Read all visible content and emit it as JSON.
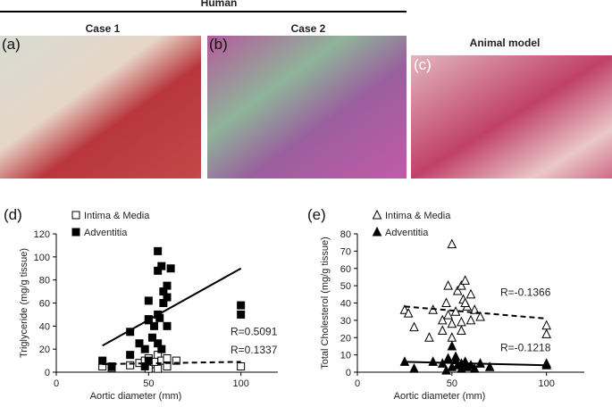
{
  "header": {
    "group": "Human",
    "case1": "Case 1",
    "case2": "Case 2",
    "animal": "Animal model"
  },
  "images": [
    {
      "label": "(a)"
    },
    {
      "label": "(b)"
    },
    {
      "label": "(c)"
    }
  ],
  "chart_data": [
    {
      "type": "scatter",
      "label": "(d)",
      "xlabel": "Aortic diameter (mm)",
      "ylabel": "Triglyceride (mg/g tissue)",
      "xlim": [
        0,
        120
      ],
      "xticks": [
        0,
        50,
        100
      ],
      "ylim": [
        0,
        120
      ],
      "yticks": [
        0,
        20,
        40,
        60,
        80,
        100,
        120
      ],
      "series": [
        {
          "name": "Intima & Media",
          "marker": "square-open",
          "color": "#000",
          "x": [
            25,
            30,
            40,
            45,
            48,
            50,
            52,
            55,
            55,
            57,
            60,
            60,
            65,
            100,
            50,
            53
          ],
          "values": [
            5,
            4,
            6,
            8,
            10,
            12,
            7,
            15,
            3,
            10,
            5,
            12,
            10,
            5,
            3,
            9
          ]
        },
        {
          "name": "Adventitia",
          "marker": "square",
          "color": "#000",
          "x": [
            25,
            30,
            40,
            40,
            45,
            48,
            50,
            50,
            50,
            52,
            53,
            55,
            55,
            57,
            55,
            56,
            58,
            58,
            60,
            60,
            57,
            55,
            62,
            50,
            100,
            100,
            48,
            60
          ],
          "values": [
            10,
            5,
            35,
            15,
            25,
            5,
            45,
            62,
            46,
            30,
            40,
            105,
            88,
            92,
            50,
            47,
            70,
            60,
            75,
            65,
            20,
            25,
            90,
            10,
            58,
            50,
            20,
            40
          ]
        }
      ],
      "trendlines": [
        {
          "label": "R=0.5091",
          "dashed": false,
          "x": [
            25,
            100
          ],
          "values": [
            23,
            90
          ]
        },
        {
          "label": "R=0.1337",
          "dashed": true,
          "x": [
            25,
            100
          ],
          "values": [
            7,
            9
          ]
        }
      ]
    },
    {
      "type": "scatter",
      "label": "(e)",
      "xlabel": "Aortic diameter (mm)",
      "ylabel": "Total Cholesterol (mg/g tissue)",
      "xlim": [
        0,
        120
      ],
      "xticks": [
        0,
        50,
        100
      ],
      "ylim": [
        0,
        80
      ],
      "yticks": [
        0,
        10,
        20,
        30,
        40,
        50,
        60,
        70,
        80
      ],
      "series": [
        {
          "name": "Intima & Media",
          "marker": "triangle-open",
          "color": "#000",
          "x": [
            25,
            27,
            30,
            38,
            40,
            45,
            47,
            48,
            50,
            50,
            52,
            53,
            55,
            55,
            56,
            57,
            58,
            60,
            60,
            62,
            65,
            50,
            48,
            45,
            55,
            57,
            100,
            100
          ],
          "values": [
            36,
            34,
            26,
            20,
            36,
            30,
            40,
            33,
            74,
            28,
            35,
            47,
            50,
            24,
            42,
            53,
            38,
            45,
            30,
            36,
            32,
            20,
            50,
            24,
            29,
            40,
            27,
            22
          ]
        },
        {
          "name": "Adventitia",
          "marker": "triangle",
          "color": "#000",
          "x": [
            25,
            30,
            40,
            45,
            48,
            50,
            50,
            52,
            53,
            55,
            55,
            57,
            58,
            60,
            62,
            65,
            70,
            100,
            100,
            47,
            52
          ],
          "values": [
            6,
            2,
            6,
            5,
            8,
            15,
            3,
            7,
            4,
            5,
            2,
            6,
            3,
            4,
            2,
            5,
            3,
            5,
            4,
            1,
            9
          ]
        }
      ],
      "trendlines": [
        {
          "label": "R=-0.1366",
          "dashed": true,
          "x": [
            25,
            100
          ],
          "values": [
            38,
            31
          ]
        },
        {
          "label": "R=-0.1218",
          "dashed": false,
          "x": [
            25,
            100
          ],
          "values": [
            6,
            4
          ]
        }
      ]
    }
  ]
}
